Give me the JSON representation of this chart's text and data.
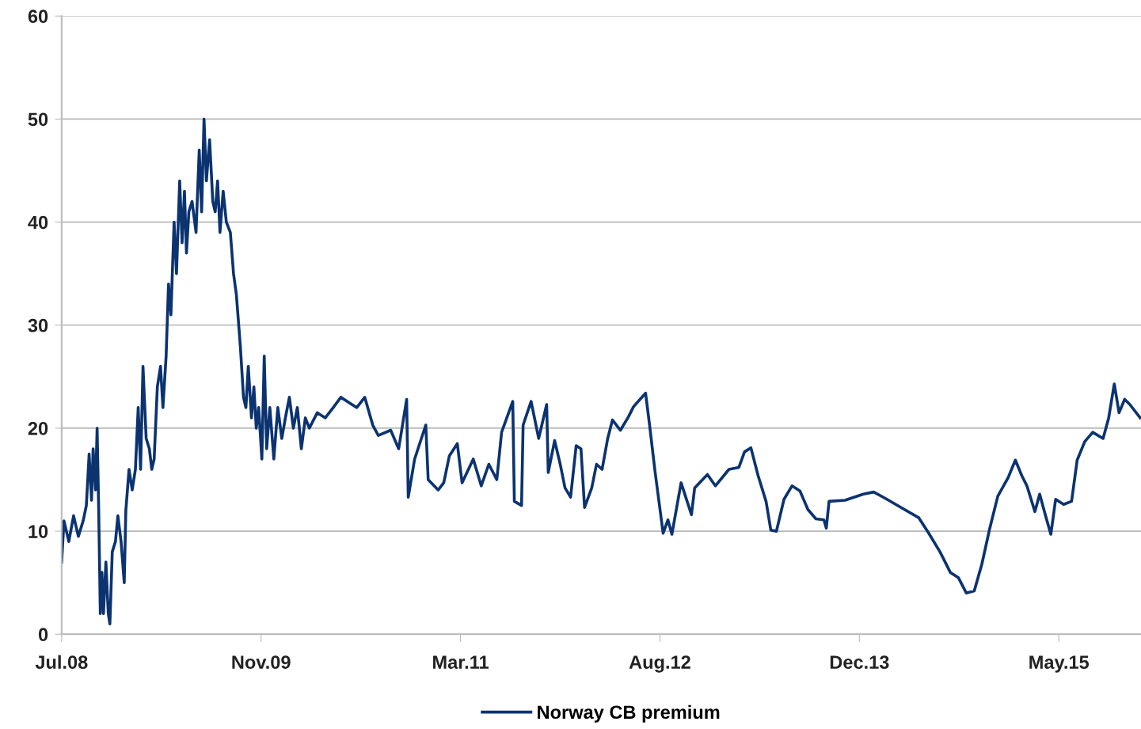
{
  "chart_data": {
    "type": "line",
    "ylim": [
      0,
      60
    ],
    "yticks": [
      0,
      10,
      20,
      30,
      40,
      50,
      60
    ],
    "xlim": [
      "2008-07-01",
      "2015-11-28"
    ],
    "xticks": [
      {
        "value": "2008-07-01",
        "label": "Jul.08"
      },
      {
        "value": "2009-11-13",
        "label": "Nov.09"
      },
      {
        "value": "2011-03-28",
        "label": "Mar.11"
      },
      {
        "value": "2012-08-09",
        "label": "Aug.12"
      },
      {
        "value": "2013-12-22",
        "label": "Dec.13"
      },
      {
        "value": "2015-05-06",
        "label": "May.15"
      }
    ],
    "grid": "y",
    "legend": "bottom",
    "marker": "none",
    "line_style": "solid",
    "x": [
      "2008-07-01",
      "2008-07-07",
      "2008-07-19",
      "2008-07-31",
      "2008-08-12",
      "2008-08-24",
      "2008-09-01",
      "2008-09-08",
      "2008-09-14",
      "2008-09-18",
      "2008-09-24",
      "2008-09-28",
      "2008-10-02",
      "2008-10-06",
      "2008-10-10",
      "2008-10-14",
      "2008-10-20",
      "2008-10-26",
      "2008-10-30",
      "2008-11-05",
      "2008-11-13",
      "2008-11-19",
      "2008-11-27",
      "2008-12-05",
      "2008-12-09",
      "2008-12-17",
      "2008-12-25",
      "2009-01-02",
      "2009-01-09",
      "2009-01-15",
      "2009-01-21",
      "2009-01-29",
      "2009-02-06",
      "2009-02-12",
      "2009-02-18",
      "2009-02-26",
      "2009-03-06",
      "2009-03-12",
      "2009-03-20",
      "2009-03-26",
      "2009-04-01",
      "2009-04-09",
      "2009-04-15",
      "2009-04-23",
      "2009-04-29",
      "2009-05-05",
      "2009-05-10",
      "2009-05-16",
      "2009-05-24",
      "2009-06-03",
      "2009-06-11",
      "2009-06-17",
      "2009-06-23",
      "2009-06-29",
      "2009-07-07",
      "2009-07-15",
      "2009-07-21",
      "2009-07-27",
      "2009-08-02",
      "2009-08-10",
      "2009-08-18",
      "2009-08-28",
      "2009-09-05",
      "2009-09-12",
      "2009-09-22",
      "2009-09-30",
      "2009-10-06",
      "2009-10-12",
      "2009-10-20",
      "2009-10-26",
      "2009-11-01",
      "2009-11-07",
      "2009-11-15",
      "2009-11-21",
      "2009-11-27",
      "2009-12-05",
      "2009-12-15",
      "2009-12-25",
      "2010-01-04",
      "2010-01-13",
      "2010-01-23",
      "2010-02-02",
      "2010-02-12",
      "2010-02-22",
      "2010-03-04",
      "2010-03-14",
      "2010-04-03",
      "2010-04-23",
      "2010-05-13",
      "2010-06-01",
      "2010-06-21",
      "2010-07-11",
      "2010-07-31",
      "2010-08-20",
      "2010-09-03",
      "2010-10-04",
      "2010-10-24",
      "2010-11-13",
      "2010-11-17",
      "2010-12-03",
      "2010-12-31",
      "2011-01-06",
      "2011-01-31",
      "2011-02-14",
      "2011-02-28",
      "2011-03-20",
      "2011-04-01",
      "2011-04-29",
      "2011-05-19",
      "2011-06-07",
      "2011-06-27",
      "2011-07-09",
      "2011-08-06",
      "2011-08-10",
      "2011-08-28",
      "2011-09-01",
      "2011-09-21",
      "2011-10-10",
      "2011-10-30",
      "2011-11-03",
      "2011-11-19",
      "2011-12-03",
      "2011-12-15",
      "2011-12-29",
      "2012-01-12",
      "2012-01-24",
      "2012-02-02",
      "2012-02-20",
      "2012-03-03",
      "2012-03-17",
      "2012-03-31",
      "2012-04-12",
      "2012-05-02",
      "2012-05-22",
      "2012-06-04",
      "2012-07-04",
      "2012-07-14",
      "2012-07-28",
      "2012-08-17",
      "2012-08-29",
      "2012-09-08",
      "2012-10-01",
      "2012-10-27",
      "2012-11-04",
      "2012-12-06",
      "2012-12-26",
      "2013-01-29",
      "2013-02-23",
      "2013-03-09",
      "2013-03-25",
      "2013-04-12",
      "2013-05-02",
      "2013-05-14",
      "2013-05-28",
      "2013-06-16",
      "2013-07-06",
      "2013-07-26",
      "2013-08-15",
      "2013-09-04",
      "2013-09-24",
      "2013-09-30",
      "2013-10-07",
      "2013-11-16",
      "2014-01-01",
      "2014-01-27",
      "2014-03-01",
      "2014-04-10",
      "2014-05-20",
      "2014-06-14",
      "2014-07-12",
      "2014-08-07",
      "2014-08-27",
      "2014-09-16",
      "2014-10-06",
      "2014-10-25",
      "2014-11-14",
      "2014-12-04",
      "2014-12-30",
      "2015-01-17",
      "2015-02-02",
      "2015-02-15",
      "2015-03-07",
      "2015-03-19",
      "2015-04-02",
      "2015-04-16",
      "2015-04-28",
      "2015-05-18",
      "2015-06-07",
      "2015-06-21",
      "2015-07-10",
      "2015-07-30",
      "2015-08-25",
      "2015-09-08",
      "2015-09-22",
      "2015-10-04",
      "2015-10-18",
      "2015-10-31",
      "2015-11-26"
    ],
    "series": [
      {
        "name": "Norway CB premium",
        "color": "#0b3370",
        "values": [
          7,
          11,
          9,
          11.5,
          9.5,
          11,
          12.5,
          17.5,
          13,
          18,
          14,
          20,
          12,
          2,
          6,
          2,
          7,
          2,
          1,
          8,
          9,
          11.5,
          9,
          5,
          12,
          16,
          14,
          16,
          22,
          16,
          26,
          19,
          18,
          16,
          17,
          24,
          26,
          22,
          27,
          34,
          31,
          40,
          35,
          44,
          38,
          43,
          37,
          41,
          42,
          39,
          47,
          41,
          50,
          44,
          48,
          42,
          41,
          44,
          39,
          43,
          40,
          39,
          35,
          33,
          28,
          23,
          22,
          26,
          21,
          24,
          20,
          22,
          17,
          27,
          18,
          22,
          17,
          22,
          19,
          21,
          23,
          20,
          22,
          18,
          21,
          20,
          21.5,
          21,
          22,
          23,
          22.5,
          22,
          23,
          20.3,
          19.3,
          19.8,
          18,
          22.8,
          13.3,
          17,
          20.3,
          15,
          14,
          14.7,
          17.3,
          18.5,
          14.7,
          17,
          14.4,
          16.5,
          15,
          19.6,
          22.6,
          12.9,
          12.5,
          20.3,
          22.6,
          19,
          22.3,
          15.7,
          18.8,
          16.5,
          14.2,
          13.3,
          18.3,
          18,
          12.3,
          14.2,
          16.5,
          16,
          19,
          20.8,
          19.8,
          21.1,
          22.1,
          23.4,
          20.3,
          15.7,
          9.8,
          11.1,
          9.7,
          14.7,
          11.6,
          14.2,
          15.5,
          14.4,
          16,
          16.2,
          17.7,
          18.1,
          15.4,
          12.9,
          10.1,
          10,
          13.1,
          14.4,
          13.9,
          12.1,
          11.2,
          11.1,
          10.3,
          12.9,
          13,
          13.6,
          13.8,
          13.1,
          12.2,
          11.3,
          9.8,
          8,
          6,
          5.5,
          4,
          4.2,
          6.8,
          10.3,
          13.4,
          15.2,
          16.9,
          15.4,
          14.4,
          11.9,
          13.6,
          11.6,
          9.7,
          13.1,
          12.6,
          12.9,
          16.9,
          18.7,
          19.6,
          19,
          21,
          24.3,
          21.5,
          22.8,
          22.3,
          21
        ]
      }
    ]
  }
}
